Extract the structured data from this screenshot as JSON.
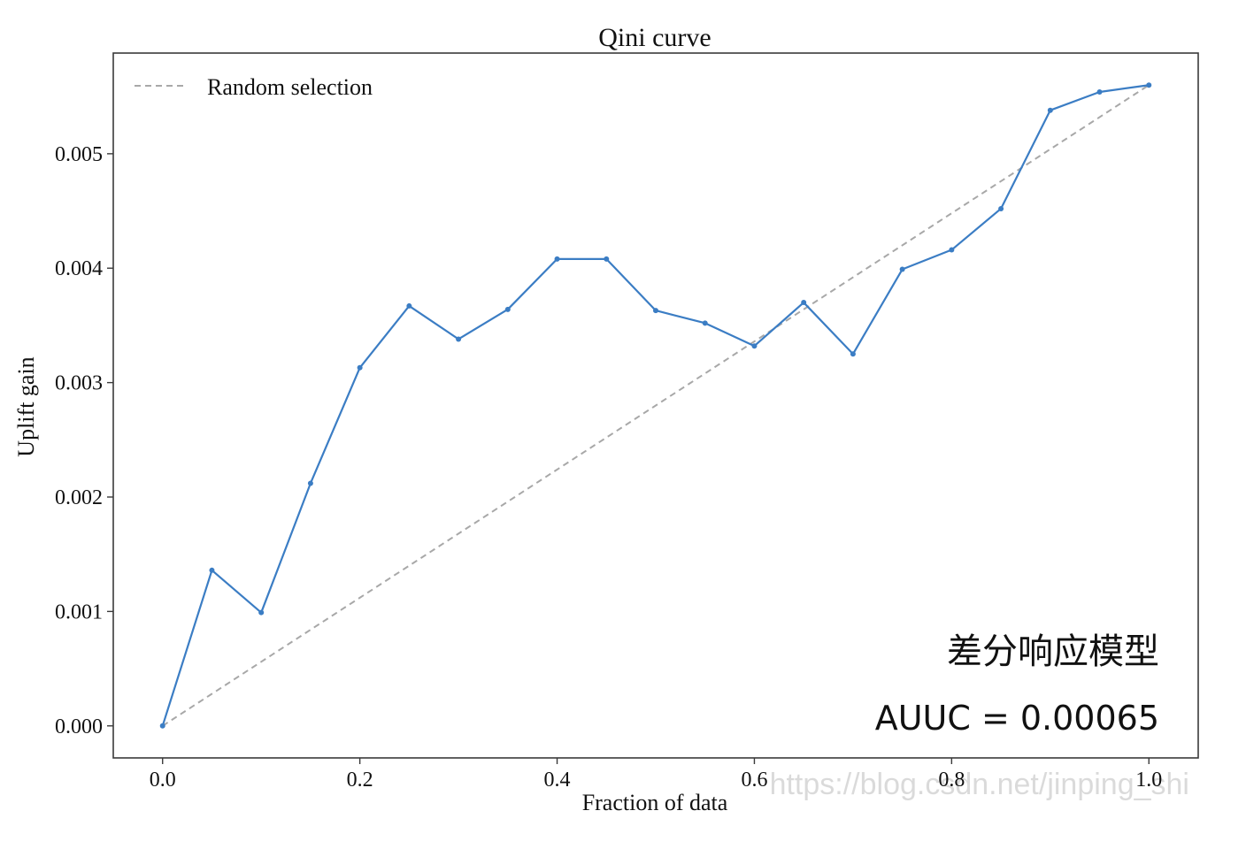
{
  "chart_data": {
    "type": "line",
    "title": "Qini curve",
    "xlabel": "Fraction of data",
    "ylabel": "Uplift gain",
    "xlim": [
      -0.05,
      1.05
    ],
    "ylim": [
      -0.00028,
      0.00588
    ],
    "x_ticks": [
      0.0,
      0.2,
      0.4,
      0.6,
      0.8,
      1.0
    ],
    "x_tick_labels": [
      "0.0",
      "0.2",
      "0.4",
      "0.6",
      "0.8",
      "1.0"
    ],
    "y_ticks": [
      0.0,
      0.001,
      0.002,
      0.003,
      0.004,
      0.005
    ],
    "y_tick_labels": [
      "0.000",
      "0.001",
      "0.002",
      "0.003",
      "0.004",
      "0.005"
    ],
    "grid": false,
    "legend_position": "top-left",
    "series": [
      {
        "name": "",
        "style": "solid",
        "marker": "dot",
        "color": "#3b7dc4",
        "x": [
          0.0,
          0.05,
          0.1,
          0.15,
          0.2,
          0.25,
          0.3,
          0.35,
          0.4,
          0.45,
          0.5,
          0.55,
          0.6,
          0.65,
          0.7,
          0.75,
          0.8,
          0.85,
          0.9,
          0.95,
          1.0
        ],
        "y": [
          0.0,
          0.00136,
          0.00099,
          0.00212,
          0.00313,
          0.00367,
          0.00338,
          0.00364,
          0.00408,
          0.00408,
          0.00363,
          0.00352,
          0.00332,
          0.0037,
          0.00325,
          0.00399,
          0.00416,
          0.00452,
          0.00538,
          0.00554,
          0.0056
        ]
      },
      {
        "name": "Random selection",
        "style": "dashed",
        "color": "#a8a8a8",
        "x": [
          0.0,
          1.0
        ],
        "y": [
          0.0,
          0.0056
        ]
      }
    ],
    "annotations": [
      "差分响应模型",
      "AUUC = 0.00065"
    ],
    "watermark": "https://blog.csdn.net/jinping_shi"
  }
}
